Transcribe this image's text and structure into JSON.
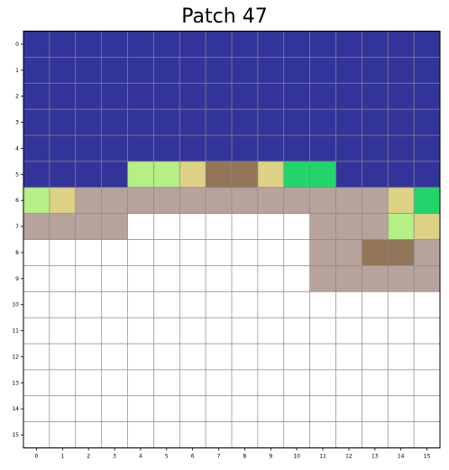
{
  "title": "Patch 47",
  "chart_data": {
    "type": "heatmap",
    "rows": 16,
    "cols": 16,
    "x_tick_labels": [
      "0",
      "1",
      "2",
      "3",
      "4",
      "5",
      "6",
      "7",
      "8",
      "9",
      "10",
      "11",
      "12",
      "13",
      "14",
      "15"
    ],
    "y_tick_labels": [
      "0",
      "1",
      "2",
      "3",
      "4",
      "5",
      "6",
      "7",
      "8",
      "9",
      "10",
      "11",
      "12",
      "13",
      "14",
      "15"
    ],
    "grid": true,
    "palette": {
      "W": "#33349a",
      "L": "#b6ef85",
      "Y": "#dcd184",
      "B": "#93755a",
      "G": "#22d46a",
      "T": "#b7a39b",
      "E": "#ffffff"
    },
    "tiles": [
      "WWWWWWWWWWWWWWWW",
      "WWWWWWWWWWWWWWWW",
      "WWWWWWWWWWWWWWWW",
      "WWWWWWWWWWWWWWWW",
      "WWWWWWWWWWWWWWWW",
      "WWWWLLYBBYGGWWWW",
      "LYTTTTTTTTTTTTYG",
      "TTTTEEEEEEETTTLY",
      "EEEEEEEEEEETTBBT",
      "EEEEEEEEEEETTTTT",
      "EEEEEEEEEEEEEEEE",
      "EEEEEEEEEEEEEEEE",
      "EEEEEEEEEEEEEEEE",
      "EEEEEEEEEEEEEEEE",
      "EEEEEEEEEEEEEEEE",
      "EEEEEEEEEEEEEEEE"
    ]
  }
}
